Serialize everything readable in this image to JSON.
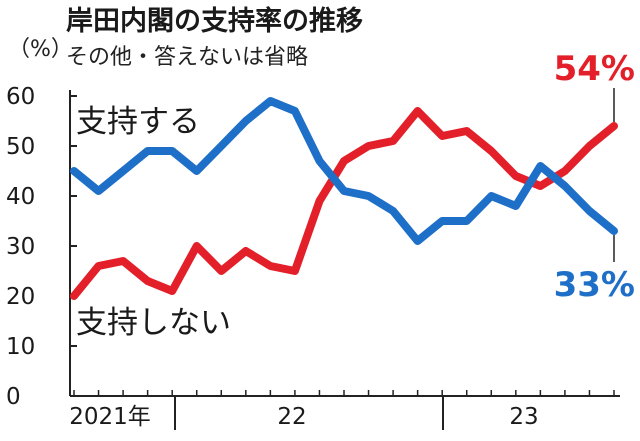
{
  "chart_data": {
    "type": "line",
    "title": "岸田内閣の支持率の推移",
    "subtitle": "その他・答えないは省略",
    "unit_label": "（%）",
    "ylim": [
      0,
      60
    ],
    "y_ticks": [
      "60",
      "50",
      "40",
      "30",
      "20",
      "10",
      "0"
    ],
    "x_ticks": [
      "2021年",
      "22",
      "23"
    ],
    "series": [
      {
        "name": "支持する",
        "color": "#1e6fc8",
        "end_label": "33%",
        "values": [
          45,
          41,
          45,
          49,
          49,
          45,
          50,
          55,
          59,
          57,
          47,
          41,
          40,
          37,
          31,
          35,
          35,
          40,
          38,
          46,
          42,
          37,
          33
        ]
      },
      {
        "name": "支持しない",
        "color": "#e3202a",
        "end_label": "54%",
        "values": [
          20,
          26,
          27,
          23,
          21,
          30,
          25,
          29,
          26,
          25,
          39,
          47,
          50,
          51,
          57,
          52,
          53,
          49,
          44,
          42,
          45,
          50,
          54
        ]
      }
    ],
    "grid": false,
    "legend": "inline"
  }
}
